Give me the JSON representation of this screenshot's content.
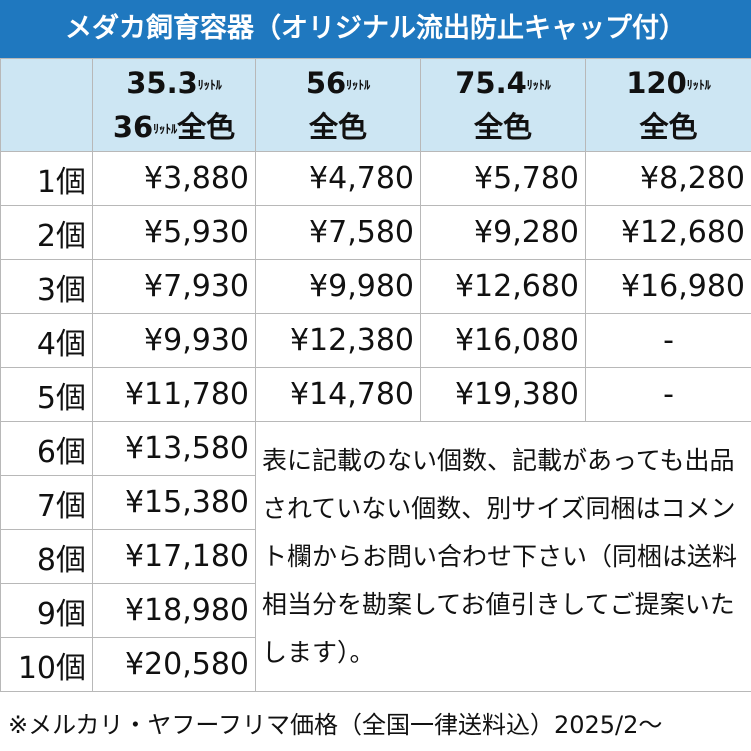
{
  "header": {
    "title": "メダカ飼育容器（オリジナル流出防止キャップ付）"
  },
  "table": {
    "columns": [
      {
        "size": "35.3",
        "unit": "ﾘｯﾄﾙ",
        "sub_size": "36",
        "sub_unit": "ﾘｯﾄﾙ",
        "color": "全色"
      },
      {
        "size": "56",
        "unit": "ﾘｯﾄﾙ",
        "color": "全色"
      },
      {
        "size": "75.4",
        "unit": "ﾘｯﾄﾙ",
        "color": "全色"
      },
      {
        "size": "120",
        "unit": "ﾘｯﾄﾙ",
        "color": "全色"
      }
    ],
    "rows": [
      {
        "label": "1個",
        "prices": [
          "¥3,880",
          "¥4,780",
          "¥5,780",
          "¥8,280"
        ]
      },
      {
        "label": "2個",
        "prices": [
          "¥5,930",
          "¥7,580",
          "¥9,280",
          "¥12,680"
        ]
      },
      {
        "label": "3個",
        "prices": [
          "¥7,930",
          "¥9,980",
          "¥12,680",
          "¥16,980"
        ]
      },
      {
        "label": "4個",
        "prices": [
          "¥9,930",
          "¥12,380",
          "¥16,080",
          "-"
        ]
      },
      {
        "label": "5個",
        "prices": [
          "¥11,780",
          "¥14,780",
          "¥19,380",
          "-"
        ]
      },
      {
        "label": "6個",
        "prices": [
          "¥13,580"
        ]
      },
      {
        "label": "7個",
        "prices": [
          "¥15,380"
        ]
      },
      {
        "label": "8個",
        "prices": [
          "¥17,180"
        ]
      },
      {
        "label": "9個",
        "prices": [
          "¥18,980"
        ]
      },
      {
        "label": "10個",
        "prices": [
          "¥20,580"
        ]
      }
    ],
    "note": "表に記載のない個数、記載があっても出品されていない個数、別サイズ同梱はコメント欄からお問い合わせ下さい（同梱は送料相当分を勘案してお値引きしてご提案いたします）。"
  },
  "footer": {
    "text": "※メルカリ・ヤフーフリマ価格（全国一律送料込）2025/2～"
  }
}
